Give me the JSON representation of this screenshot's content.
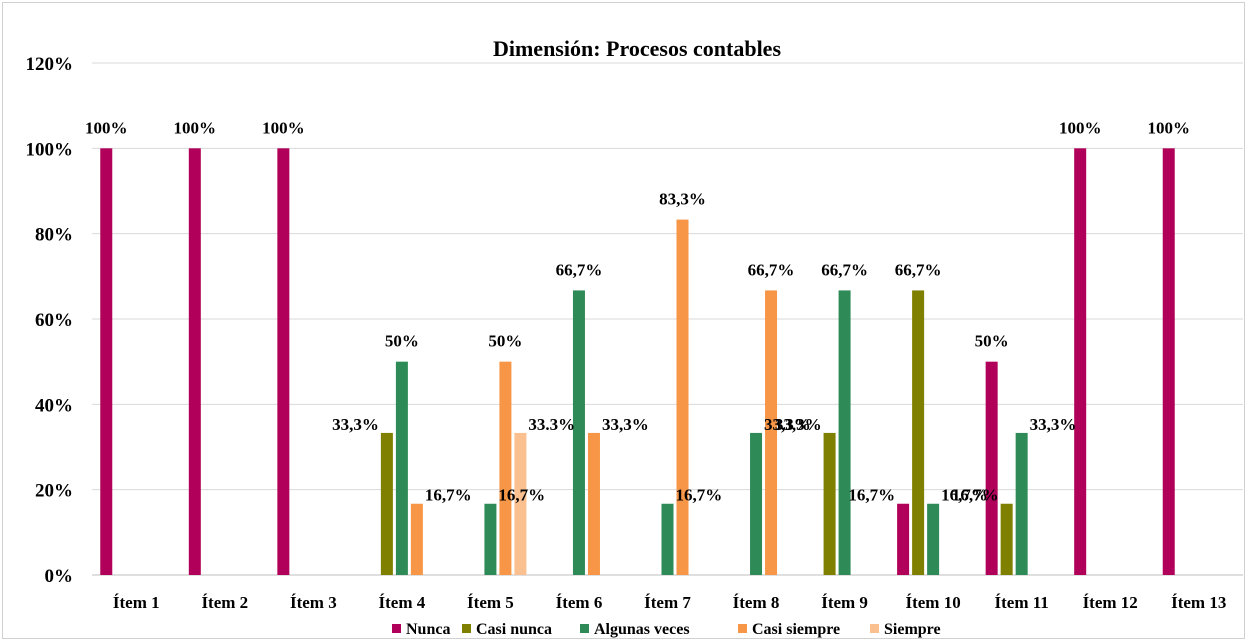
{
  "chart_data": {
    "type": "bar",
    "title": "Dimensión: Procesos contables",
    "categories": [
      "Ítem 1",
      "Ítem 2",
      "Ítem 3",
      "Ítem 4",
      "Ítem 5",
      "Ítem 6",
      "Ítem 7",
      "Ítem 8",
      "Ítem 9",
      "Ítem 10",
      "Ítem 11",
      "Ítem 12",
      "Ítem 13"
    ],
    "ylim": [
      0,
      120
    ],
    "yticks": [
      "0%",
      "20%",
      "40%",
      "60%",
      "80%",
      "100%",
      "120%"
    ],
    "grid": true,
    "legend_position": "bottom",
    "series": [
      {
        "name": "Nunca",
        "color": "#b0005a",
        "values": [
          100,
          100,
          100,
          null,
          null,
          null,
          null,
          null,
          null,
          16.7,
          50,
          100,
          100
        ],
        "labels": [
          "100%",
          "100%",
          "100%",
          null,
          null,
          null,
          null,
          null,
          null,
          "16,7%",
          "50%",
          "100%",
          "100%"
        ]
      },
      {
        "name": "Casi nunca",
        "color": "#7f7f00",
        "values": [
          null,
          null,
          null,
          33.3,
          null,
          null,
          null,
          null,
          33.3,
          66.7,
          16.7,
          null,
          null
        ],
        "labels": [
          null,
          null,
          null,
          "33,3%",
          null,
          null,
          null,
          null,
          "33,3%",
          "66,7%",
          "16,7%",
          null,
          null
        ]
      },
      {
        "name": "Algunas veces",
        "color": "#2e8b57",
        "values": [
          null,
          null,
          null,
          50,
          16.7,
          66.7,
          16.7,
          33.3,
          66.7,
          16.7,
          33.3,
          null,
          null
        ],
        "labels": [
          null,
          null,
          null,
          "50%",
          "16,7%",
          "66,7%",
          "16,7%",
          "33,3%",
          "66,7%",
          "16,7%",
          "33,3%",
          null,
          null
        ]
      },
      {
        "name": "Casi siempre",
        "color": "#f79646",
        "values": [
          null,
          null,
          null,
          16.7,
          50,
          33.3,
          83.3,
          66.7,
          null,
          null,
          null,
          null,
          null
        ],
        "labels": [
          null,
          null,
          null,
          "16,7%",
          "50%",
          "33,3%",
          "83,3%",
          "66,7%",
          null,
          null,
          null,
          null,
          null
        ]
      },
      {
        "name": "Siempre",
        "color": "#fac090",
        "values": [
          null,
          null,
          null,
          null,
          33.3,
          null,
          null,
          null,
          null,
          null,
          null,
          null,
          null
        ],
        "labels": [
          null,
          null,
          null,
          null,
          "33.3%",
          null,
          null,
          null,
          null,
          null,
          null,
          null,
          null
        ]
      }
    ]
  }
}
